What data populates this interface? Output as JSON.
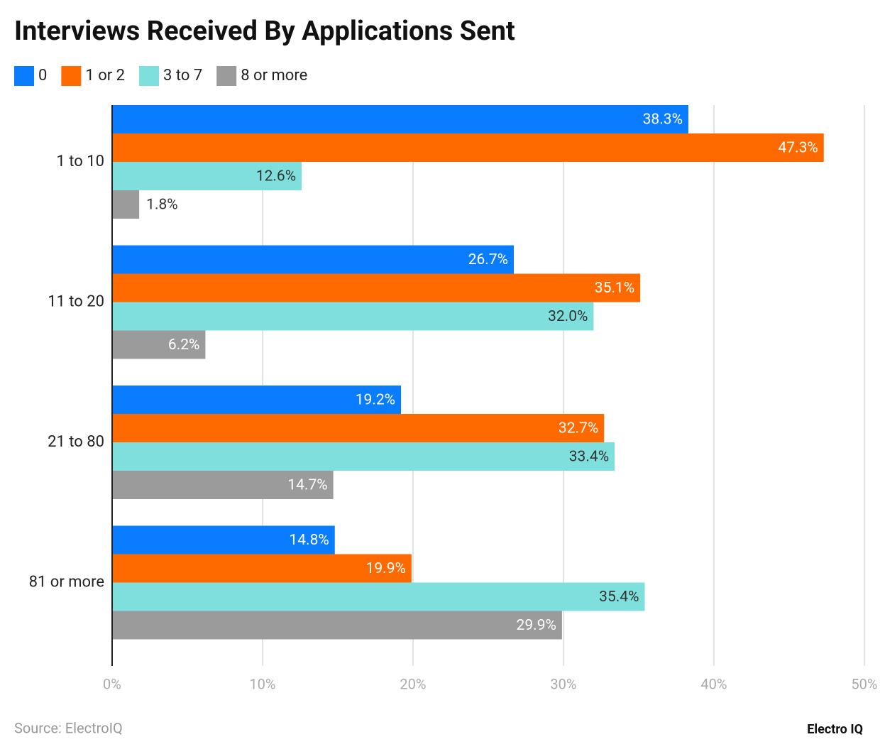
{
  "chart_data": {
    "type": "hbar",
    "title": "Interviews Received By Applications Sent",
    "categories": [
      "1 to 10",
      "11 to 20",
      "21 to 80",
      "81 or more"
    ],
    "series": [
      {
        "name": "0",
        "color": "#0a7cff",
        "values": [
          38.3,
          26.7,
          19.2,
          14.8
        ],
        "value_labels": [
          "38.3%",
          "26.7%",
          "19.2%",
          "14.8%"
        ]
      },
      {
        "name": "1 or 2",
        "color": "#ff6a00",
        "values": [
          47.3,
          35.1,
          32.7,
          19.9
        ],
        "value_labels": [
          "47.3%",
          "35.1%",
          "32.7%",
          "19.9%"
        ]
      },
      {
        "name": "3 to 7",
        "color": "#7edfdd",
        "values": [
          12.6,
          32.0,
          33.4,
          35.4
        ],
        "value_labels": [
          "12.6%",
          "32.0%",
          "33.4%",
          "35.4%"
        ]
      },
      {
        "name": "8 or more",
        "color": "#9b9b9b",
        "values": [
          1.8,
          6.2,
          14.7,
          29.9
        ],
        "value_labels": [
          "1.8%",
          "6.2%",
          "14.7%",
          "29.9%"
        ]
      }
    ],
    "xlim": [
      0,
      50
    ],
    "xticks": [
      {
        "value": 0,
        "label": "0%"
      },
      {
        "value": 10,
        "label": "10%"
      },
      {
        "value": 20,
        "label": "20%"
      },
      {
        "value": 30,
        "label": "30%"
      },
      {
        "value": 40,
        "label": "40%"
      },
      {
        "value": 50,
        "label": "50%"
      }
    ],
    "grid": true,
    "source": "Source: ElectroIQ",
    "logo": "Electro IQ"
  }
}
